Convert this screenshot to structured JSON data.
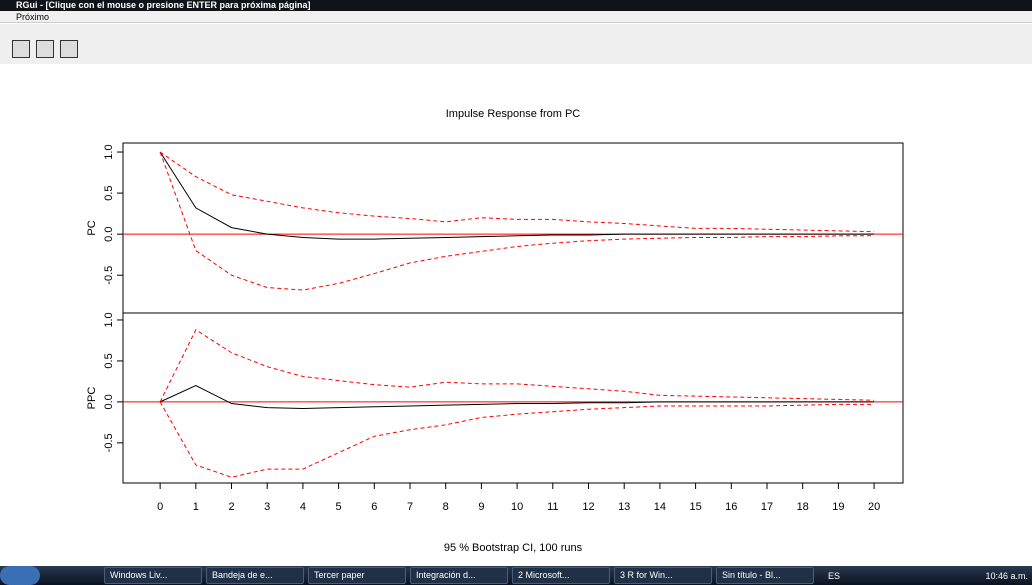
{
  "window": {
    "title": "RGui - [Clique con el mouse o presione ENTER para próxima página]",
    "menu": "Próximo"
  },
  "taskbar": {
    "items": [
      "Windows Liv...",
      "Bandeja de e...",
      "Tercer paper",
      "Integración d...",
      "2 Microsoft...",
      "3 R for Win...",
      "Sin título - Bl..."
    ],
    "language": "ES",
    "clock": "10:46 a.m."
  },
  "chart_data": [
    {
      "type": "line",
      "title": "Impulse Response from PC",
      "ylabel": "PC",
      "x": [
        0,
        1,
        2,
        3,
        4,
        5,
        6,
        7,
        8,
        9,
        10,
        11,
        12,
        13,
        14,
        15,
        16,
        17,
        18,
        19,
        20
      ],
      "xlim": [
        -1.04,
        20.81
      ],
      "ylim": [
        -0.96,
        1.11
      ],
      "yticks": [
        -0.5,
        {
          "value": 0,
          "label": "0.0"
        },
        0.5,
        {
          "value": 1,
          "label": "1.0"
        }
      ],
      "hline": {
        "value": 0,
        "color": "#ff0000"
      },
      "series": [
        {
          "color": "#000000",
          "linestyle": "solid",
          "values": [
            1.0,
            0.32,
            0.08,
            0.0,
            -0.04,
            -0.06,
            -0.06,
            -0.05,
            -0.04,
            -0.03,
            -0.02,
            -0.01,
            -0.01,
            0.0,
            0.0,
            0.0,
            0.0,
            0.0,
            0.0,
            0.0,
            0.0
          ]
        },
        {
          "color": "#ff0000",
          "linestyle": "dashed",
          "values": [
            1.0,
            0.7,
            0.48,
            0.4,
            0.32,
            0.26,
            0.22,
            0.19,
            0.15,
            0.2,
            0.18,
            0.18,
            0.15,
            0.13,
            0.1,
            0.07,
            0.07,
            0.06,
            0.05,
            0.04,
            0.03
          ]
        },
        {
          "color": "#ff0000",
          "linestyle": "dashed",
          "values": [
            1.0,
            -0.2,
            -0.5,
            -0.65,
            -0.68,
            -0.6,
            -0.48,
            -0.35,
            -0.27,
            -0.21,
            -0.15,
            -0.11,
            -0.08,
            -0.06,
            -0.05,
            -0.04,
            -0.04,
            -0.03,
            -0.03,
            -0.02,
            -0.02
          ]
        }
      ]
    },
    {
      "type": "line",
      "ylabel": "PPC",
      "xlabel": "95 % Bootstrap CI,  100 runs",
      "x": [
        0,
        1,
        2,
        3,
        4,
        5,
        6,
        7,
        8,
        9,
        10,
        11,
        12,
        13,
        14,
        15,
        16,
        17,
        18,
        19,
        20
      ],
      "xlim": [
        -1.04,
        20.81
      ],
      "ylim": [
        -0.99,
        1.085
      ],
      "xticks": [
        0,
        1,
        2,
        3,
        4,
        5,
        6,
        7,
        8,
        9,
        10,
        11,
        12,
        13,
        14,
        15,
        16,
        17,
        18,
        19,
        20
      ],
      "yticks": [
        -0.5,
        {
          "value": 0,
          "label": "0.0"
        },
        0.5,
        {
          "value": 1,
          "label": "1.0"
        }
      ],
      "hline": {
        "value": 0,
        "color": "#ff0000"
      },
      "series": [
        {
          "color": "#000000",
          "linestyle": "solid",
          "values": [
            0.0,
            0.2,
            -0.02,
            -0.07,
            -0.08,
            -0.07,
            -0.06,
            -0.05,
            -0.04,
            -0.03,
            -0.02,
            -0.02,
            -0.01,
            -0.01,
            0.0,
            0.0,
            0.0,
            0.0,
            0.0,
            0.0,
            0.0
          ]
        },
        {
          "color": "#ff0000",
          "linestyle": "dashed",
          "values": [
            0.0,
            0.88,
            0.6,
            0.43,
            0.31,
            0.26,
            0.21,
            0.18,
            0.24,
            0.22,
            0.22,
            0.19,
            0.16,
            0.13,
            0.08,
            0.07,
            0.06,
            0.05,
            0.04,
            0.03,
            0.02
          ]
        },
        {
          "color": "#ff0000",
          "linestyle": "dashed",
          "values": [
            0.0,
            -0.77,
            -0.92,
            -0.82,
            -0.82,
            -0.62,
            -0.42,
            -0.34,
            -0.28,
            -0.19,
            -0.15,
            -0.12,
            -0.09,
            -0.07,
            -0.05,
            -0.05,
            -0.05,
            -0.05,
            -0.04,
            -0.03,
            -0.03
          ]
        }
      ]
    }
  ]
}
